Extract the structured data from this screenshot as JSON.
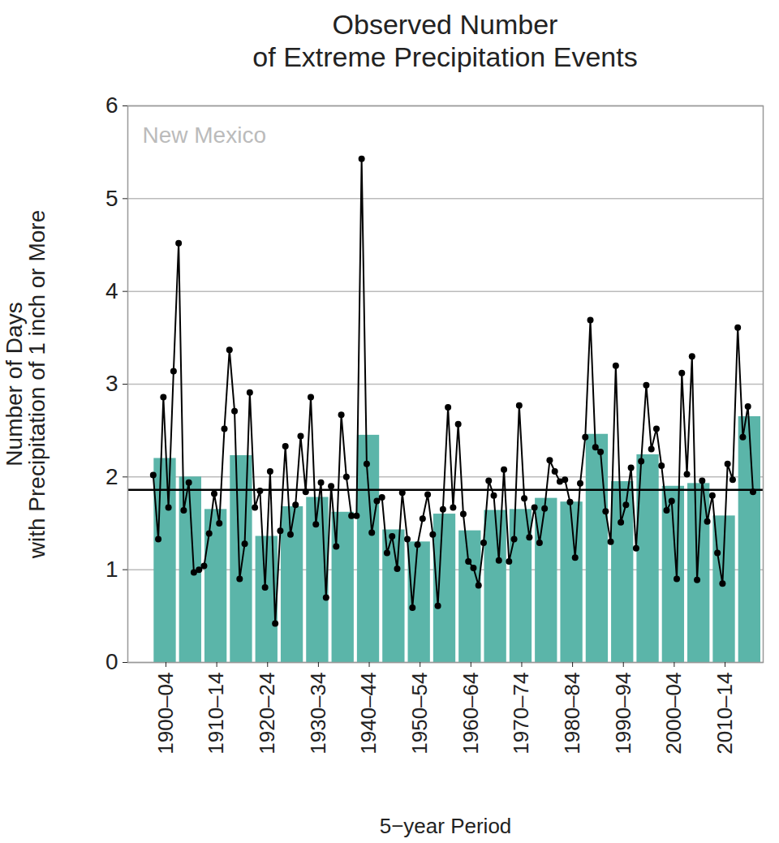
{
  "chart_data": {
    "type": "bar",
    "title": "Observed Number\nof Extreme Precipitation Events",
    "annotation": "New Mexico",
    "xlabel": "5−year Period",
    "ylabel": "Number of Days\nwith Precipitation of 1 inch or More",
    "xlim": [
      1895,
      2020
    ],
    "xticks": [
      {
        "value": 1902.5,
        "label": "1900–04"
      },
      {
        "value": 1912.5,
        "label": "1910–14"
      },
      {
        "value": 1922.5,
        "label": "1920–24"
      },
      {
        "value": 1932.5,
        "label": "1930–34"
      },
      {
        "value": 1942.5,
        "label": "1940–44"
      },
      {
        "value": 1952.5,
        "label": "1950–54"
      },
      {
        "value": 1962.5,
        "label": "1960–64"
      },
      {
        "value": 1972.5,
        "label": "1970–74"
      },
      {
        "value": 1982.5,
        "label": "1980–84"
      },
      {
        "value": 1992.5,
        "label": "1990–94"
      },
      {
        "value": 2002.5,
        "label": "2000–04"
      },
      {
        "value": 2012.5,
        "label": "2010–14"
      }
    ],
    "ylim": [
      0,
      6
    ],
    "yticks": [
      0,
      1,
      2,
      3,
      4,
      5,
      6
    ],
    "grid": true,
    "average": 1.86,
    "series": [
      {
        "type": "bar",
        "color": "#5bb5a9",
        "x": [
          1900,
          1905,
          1910,
          1915,
          1920,
          1925,
          1930,
          1935,
          1940,
          1945,
          1950,
          1955,
          1960,
          1965,
          1970,
          1975,
          1980,
          1985,
          1990,
          1995,
          2000,
          2005,
          2010,
          2015
        ],
        "values": [
          2.2,
          2.0,
          1.65,
          2.23,
          1.36,
          1.68,
          1.78,
          1.62,
          2.45,
          1.43,
          1.3,
          1.6,
          1.42,
          1.64,
          1.65,
          1.77,
          1.73,
          2.46,
          1.95,
          2.24,
          1.9,
          1.93,
          1.58,
          2.65
        ]
      },
      {
        "type": "line",
        "color": "#000000",
        "marker": "circle",
        "x": [
          1900,
          1901,
          1902,
          1903,
          1904,
          1905,
          1906,
          1907,
          1908,
          1909,
          1910,
          1911,
          1912,
          1913,
          1914,
          1915,
          1916,
          1917,
          1918,
          1919,
          1920,
          1921,
          1922,
          1923,
          1924,
          1925,
          1926,
          1927,
          1928,
          1929,
          1930,
          1931,
          1932,
          1933,
          1934,
          1935,
          1936,
          1937,
          1938,
          1939,
          1940,
          1941,
          1942,
          1943,
          1944,
          1945,
          1946,
          1947,
          1948,
          1949,
          1950,
          1951,
          1952,
          1953,
          1954,
          1955,
          1956,
          1957,
          1958,
          1959,
          1960,
          1961,
          1962,
          1963,
          1964,
          1965,
          1966,
          1967,
          1968,
          1969,
          1970,
          1971,
          1972,
          1973,
          1974,
          1975,
          1976,
          1977,
          1978,
          1979,
          1980,
          1981,
          1982,
          1983,
          1984,
          1985,
          1986,
          1987,
          1988,
          1989,
          1990,
          1991,
          1992,
          1993,
          1994,
          1995,
          1996,
          1997,
          1998,
          1999,
          2000,
          2001,
          2002,
          2003,
          2004,
          2005,
          2006,
          2007,
          2008,
          2009,
          2010,
          2011,
          2012,
          2013,
          2014,
          2015,
          2016,
          2017,
          2018
        ],
        "values": [
          2.02,
          1.33,
          2.86,
          1.67,
          3.14,
          4.52,
          1.64,
          1.94,
          0.97,
          1.0,
          1.04,
          1.39,
          1.82,
          1.5,
          2.52,
          3.37,
          2.71,
          0.9,
          1.28,
          2.91,
          1.67,
          1.85,
          0.81,
          2.06,
          0.42,
          1.42,
          2.33,
          1.38,
          1.7,
          2.44,
          1.84,
          2.86,
          1.49,
          1.94,
          0.7,
          1.9,
          1.25,
          2.67,
          2.0,
          1.58,
          1.58,
          5.43,
          2.14,
          1.4,
          1.74,
          1.78,
          1.18,
          1.36,
          1.01,
          1.83,
          1.33,
          0.59,
          1.27,
          1.55,
          1.81,
          1.38,
          0.61,
          1.65,
          2.75,
          1.67,
          2.57,
          1.6,
          1.09,
          1.02,
          0.83,
          1.29,
          1.96,
          1.8,
          1.1,
          2.08,
          1.09,
          1.33,
          2.77,
          1.77,
          1.35,
          1.67,
          1.29,
          1.66,
          2.18,
          2.06,
          1.95,
          1.97,
          1.73,
          1.13,
          1.93,
          2.43,
          3.69,
          2.32,
          2.27,
          1.63,
          1.3,
          3.2,
          1.51,
          1.7,
          2.1,
          1.23,
          2.17,
          2.99,
          2.3,
          2.52,
          2.12,
          1.64,
          1.74,
          0.9,
          3.12,
          2.03,
          3.3,
          0.89,
          1.96,
          1.52,
          1.8,
          1.18,
          0.85,
          2.14,
          1.97,
          3.61,
          2.43,
          2.76,
          1.84
        ]
      }
    ]
  }
}
